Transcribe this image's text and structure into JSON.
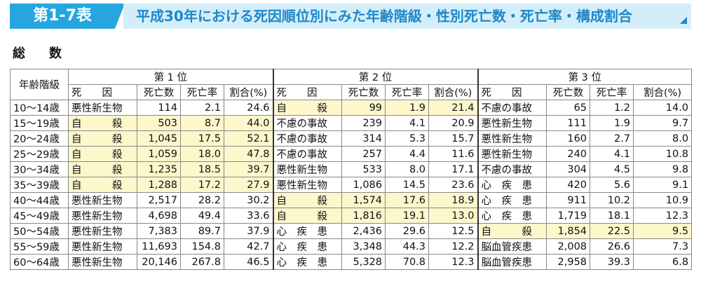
{
  "header": {
    "tag": "第1-7表",
    "title": "平成30年における死因順位別にみた年齢階級・性別死亡数・死亡率・構成割合"
  },
  "section_title": "総　数",
  "table": {
    "age_header": "年齢階級",
    "rank_headers": [
      "第 1 位",
      "第 2 位",
      "第 3 位"
    ],
    "sub_headers": [
      "死　　因",
      "死亡数",
      "死亡率",
      "割合(%)"
    ],
    "highlight_color": "#fdf7cc",
    "rows": [
      {
        "age": "10～14歳",
        "r": [
          {
            "cause": "悪性新生物",
            "deaths": "114",
            "rate": "2.1",
            "pct": "24.6",
            "hl": false
          },
          {
            "cause": "自　　　殺",
            "deaths": "99",
            "rate": "1.9",
            "pct": "21.4",
            "hl": true
          },
          {
            "cause": "不慮の事故",
            "deaths": "65",
            "rate": "1.2",
            "pct": "14.0",
            "hl": false
          }
        ]
      },
      {
        "age": "15～19歳",
        "r": [
          {
            "cause": "自　　　殺",
            "deaths": "503",
            "rate": "8.7",
            "pct": "44.0",
            "hl": true
          },
          {
            "cause": "不慮の事故",
            "deaths": "239",
            "rate": "4.1",
            "pct": "20.9",
            "hl": false
          },
          {
            "cause": "悪性新生物",
            "deaths": "111",
            "rate": "1.9",
            "pct": "9.7",
            "hl": false
          }
        ]
      },
      {
        "age": "20～24歳",
        "r": [
          {
            "cause": "自　　　殺",
            "deaths": "1,045",
            "rate": "17.5",
            "pct": "52.1",
            "hl": true
          },
          {
            "cause": "不慮の事故",
            "deaths": "314",
            "rate": "5.3",
            "pct": "15.7",
            "hl": false
          },
          {
            "cause": "悪性新生物",
            "deaths": "160",
            "rate": "2.7",
            "pct": "8.0",
            "hl": false
          }
        ]
      },
      {
        "age": "25～29歳",
        "r": [
          {
            "cause": "自　　　殺",
            "deaths": "1,059",
            "rate": "18.0",
            "pct": "47.8",
            "hl": true
          },
          {
            "cause": "不慮の事故",
            "deaths": "257",
            "rate": "4.4",
            "pct": "11.6",
            "hl": false
          },
          {
            "cause": "悪性新生物",
            "deaths": "240",
            "rate": "4.1",
            "pct": "10.8",
            "hl": false
          }
        ]
      },
      {
        "age": "30～34歳",
        "r": [
          {
            "cause": "自　　　殺",
            "deaths": "1,235",
            "rate": "18.5",
            "pct": "39.7",
            "hl": true
          },
          {
            "cause": "悪性新生物",
            "deaths": "533",
            "rate": "8.0",
            "pct": "17.1",
            "hl": false
          },
          {
            "cause": "不慮の事故",
            "deaths": "304",
            "rate": "4.5",
            "pct": "9.8",
            "hl": false
          }
        ]
      },
      {
        "age": "35～39歳",
        "r": [
          {
            "cause": "自　　　殺",
            "deaths": "1,288",
            "rate": "17.2",
            "pct": "27.9",
            "hl": true
          },
          {
            "cause": "悪性新生物",
            "deaths": "1,086",
            "rate": "14.5",
            "pct": "23.6",
            "hl": false
          },
          {
            "cause": "心　疾　患",
            "deaths": "420",
            "rate": "5.6",
            "pct": "9.1",
            "hl": false
          }
        ]
      },
      {
        "age": "40～44歳",
        "r": [
          {
            "cause": "悪性新生物",
            "deaths": "2,517",
            "rate": "28.2",
            "pct": "30.2",
            "hl": false
          },
          {
            "cause": "自　　　殺",
            "deaths": "1,574",
            "rate": "17.6",
            "pct": "18.9",
            "hl": true
          },
          {
            "cause": "心　疾　患",
            "deaths": "911",
            "rate": "10.2",
            "pct": "10.9",
            "hl": false
          }
        ]
      },
      {
        "age": "45～49歳",
        "r": [
          {
            "cause": "悪性新生物",
            "deaths": "4,698",
            "rate": "49.4",
            "pct": "33.6",
            "hl": false
          },
          {
            "cause": "自　　　殺",
            "deaths": "1,816",
            "rate": "19.1",
            "pct": "13.0",
            "hl": true
          },
          {
            "cause": "心　疾　患",
            "deaths": "1,719",
            "rate": "18.1",
            "pct": "12.3",
            "hl": false
          }
        ]
      },
      {
        "age": "50～54歳",
        "r": [
          {
            "cause": "悪性新生物",
            "deaths": "7,383",
            "rate": "89.7",
            "pct": "37.9",
            "hl": false
          },
          {
            "cause": "心　疾　患",
            "deaths": "2,436",
            "rate": "29.6",
            "pct": "12.5",
            "hl": false
          },
          {
            "cause": "自　　　殺",
            "deaths": "1,854",
            "rate": "22.5",
            "pct": "9.5",
            "hl": true
          }
        ]
      },
      {
        "age": "55～59歳",
        "r": [
          {
            "cause": "悪性新生物",
            "deaths": "11,693",
            "rate": "154.8",
            "pct": "42.7",
            "hl": false
          },
          {
            "cause": "心　疾　患",
            "deaths": "3,348",
            "rate": "44.3",
            "pct": "12.2",
            "hl": false
          },
          {
            "cause": "脳血管疾患",
            "deaths": "2,008",
            "rate": "26.6",
            "pct": "7.3",
            "hl": false
          }
        ]
      },
      {
        "age": "60～64歳",
        "r": [
          {
            "cause": "悪性新生物",
            "deaths": "20,146",
            "rate": "267.8",
            "pct": "46.5",
            "hl": false
          },
          {
            "cause": "心　疾　患",
            "deaths": "5,328",
            "rate": "70.8",
            "pct": "12.3",
            "hl": false
          },
          {
            "cause": "脳血管疾患",
            "deaths": "2,958",
            "rate": "39.3",
            "pct": "6.8",
            "hl": false
          }
        ]
      }
    ]
  }
}
